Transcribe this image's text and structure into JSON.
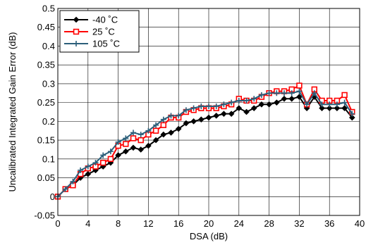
{
  "chart_data": {
    "type": "line",
    "xlabel": "DSA (dB)",
    "ylabel": "Uncalibrated Integrated Gain Error (dB)",
    "xlim": [
      0,
      40
    ],
    "ylim": [
      -0.05,
      0.5
    ],
    "x_ticks": [
      0,
      4,
      8,
      12,
      16,
      20,
      24,
      28,
      32,
      36,
      40
    ],
    "y_ticks": [
      -0.05,
      0,
      0.05,
      0.1,
      0.15,
      0.2,
      0.25,
      0.3,
      0.35,
      0.4,
      0.45,
      0.5
    ],
    "x_tick_labels": [
      "0",
      "4",
      "8",
      "12",
      "16",
      "20",
      "24",
      "28",
      "32",
      "36",
      "40"
    ],
    "y_tick_labels": [
      "-0.05",
      "0",
      "0.05",
      "0.1",
      "0.15",
      "0.2",
      "0.25",
      "0.3",
      "0.35",
      "0.4",
      "0.45",
      "0.5"
    ],
    "grid": true,
    "legend_position": "top-left",
    "x": [
      0,
      1,
      2,
      3,
      4,
      5,
      6,
      7,
      8,
      9,
      10,
      11,
      12,
      13,
      14,
      15,
      16,
      17,
      18,
      19,
      20,
      21,
      22,
      23,
      24,
      25,
      26,
      27,
      28,
      29,
      30,
      31,
      32,
      33,
      34,
      35,
      36,
      37,
      38,
      39
    ],
    "series": [
      {
        "name": "-40 ˚C",
        "color": "#000000",
        "marker": "diamond",
        "values": [
          0.0,
          0.02,
          0.03,
          0.05,
          0.06,
          0.07,
          0.08,
          0.09,
          0.11,
          0.12,
          0.13,
          0.125,
          0.135,
          0.15,
          0.165,
          0.17,
          0.18,
          0.195,
          0.2,
          0.205,
          0.21,
          0.215,
          0.22,
          0.22,
          0.235,
          0.225,
          0.235,
          0.245,
          0.245,
          0.25,
          0.26,
          0.26,
          0.265,
          0.235,
          0.265,
          0.235,
          0.235,
          0.235,
          0.235,
          0.21
        ]
      },
      {
        "name": "25 ˚C",
        "color": "#ff0000",
        "marker": "square",
        "values": [
          0.0,
          0.02,
          0.03,
          0.06,
          0.075,
          0.08,
          0.09,
          0.1,
          0.135,
          0.14,
          0.155,
          0.15,
          0.165,
          0.175,
          0.19,
          0.21,
          0.21,
          0.225,
          0.23,
          0.235,
          0.235,
          0.235,
          0.24,
          0.245,
          0.26,
          0.255,
          0.255,
          0.265,
          0.275,
          0.28,
          0.28,
          0.285,
          0.295,
          0.245,
          0.285,
          0.255,
          0.255,
          0.255,
          0.27,
          0.225
        ]
      },
      {
        "name": "105 ˚C",
        "color": "#2c5f7a",
        "marker": "plus",
        "values": [
          0.0,
          0.02,
          0.04,
          0.07,
          0.08,
          0.09,
          0.11,
          0.12,
          0.145,
          0.155,
          0.17,
          0.165,
          0.175,
          0.19,
          0.205,
          0.215,
          0.215,
          0.23,
          0.235,
          0.24,
          0.24,
          0.24,
          0.245,
          0.25,
          0.255,
          0.255,
          0.26,
          0.27,
          0.275,
          0.275,
          0.275,
          0.275,
          0.28,
          0.245,
          0.275,
          0.245,
          0.245,
          0.245,
          0.25,
          0.22
        ]
      }
    ]
  }
}
